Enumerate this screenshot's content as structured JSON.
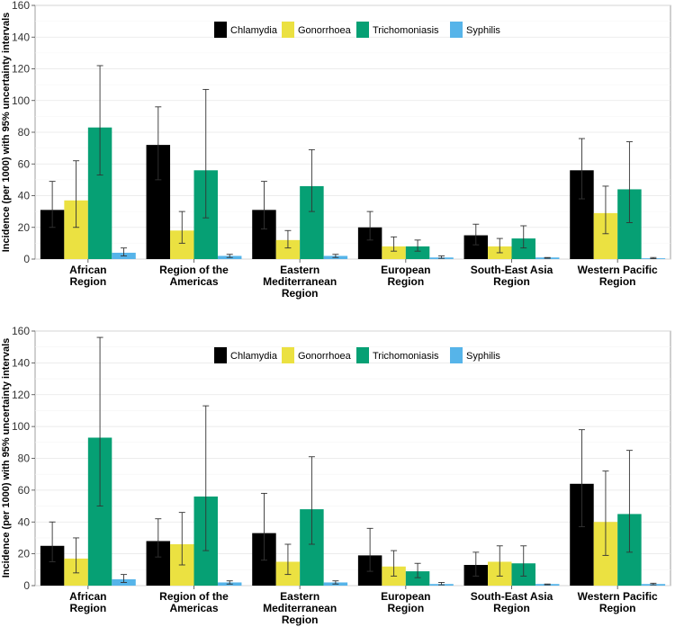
{
  "colors": {
    "Chlamydia": "#000000",
    "Gonorrhoea": "#ebe141",
    "Trichomoniasis": "#06a074",
    "Syphilis": "#56b4e9"
  },
  "chart_data": [
    {
      "type": "bar",
      "title": "",
      "xlabel": "",
      "ylabel": "Incidence (per 1000) with 95% uncertainty intervals",
      "ylim": [
        0,
        160
      ],
      "yticks": [
        0,
        20,
        40,
        60,
        80,
        100,
        120,
        140,
        160
      ],
      "grid": true,
      "legend_position": "top-center",
      "categories": [
        [
          "African",
          "Region"
        ],
        [
          "Region of the",
          "Americas"
        ],
        [
          "Eastern",
          "Mediterranean",
          "Region"
        ],
        [
          "European",
          "Region"
        ],
        [
          "South-East Asia",
          "Region"
        ],
        [
          "Western Pacific",
          "Region"
        ]
      ],
      "series": [
        {
          "name": "Chlamydia",
          "values": [
            31,
            72,
            31,
            20,
            15,
            56
          ],
          "lower": [
            20,
            50,
            19,
            12,
            9,
            38
          ],
          "upper": [
            49,
            96,
            49,
            30,
            22,
            76
          ]
        },
        {
          "name": "Gonorrhoea",
          "values": [
            37,
            18,
            12,
            8,
            8,
            29
          ],
          "lower": [
            20,
            10,
            7,
            5,
            4,
            16
          ],
          "upper": [
            62,
            30,
            18,
            14,
            13,
            46
          ]
        },
        {
          "name": "Trichomoniasis",
          "values": [
            83,
            56,
            46,
            8,
            13,
            44
          ],
          "lower": [
            53,
            26,
            30,
            5,
            7,
            23
          ],
          "upper": [
            122,
            107,
            69,
            12,
            21,
            74
          ]
        },
        {
          "name": "Syphilis",
          "values": [
            4,
            2,
            2,
            1,
            1,
            0.5
          ],
          "lower": [
            2,
            1,
            1,
            0.5,
            0.5,
            0.3
          ],
          "upper": [
            7,
            3,
            3,
            2,
            1,
            1
          ]
        }
      ]
    },
    {
      "type": "bar",
      "title": "",
      "xlabel": "",
      "ylabel": "Incidence (per 1000) with 95% uncertainty intervals",
      "ylim": [
        0,
        160
      ],
      "yticks": [
        0,
        20,
        40,
        60,
        80,
        100,
        120,
        140,
        160
      ],
      "grid": true,
      "legend_position": "top-center",
      "categories": [
        [
          "African",
          "Region"
        ],
        [
          "Region of the",
          "Americas"
        ],
        [
          "Eastern",
          "Mediterranean",
          "Region"
        ],
        [
          "European",
          "Region"
        ],
        [
          "South-East Asia",
          "Region"
        ],
        [
          "Western Pacific",
          "Region"
        ]
      ],
      "series": [
        {
          "name": "Chlamydia",
          "values": [
            25,
            28,
            33,
            19,
            13,
            64
          ],
          "lower": [
            15,
            18,
            16,
            9,
            6,
            37
          ],
          "upper": [
            40,
            42,
            58,
            36,
            21,
            98
          ]
        },
        {
          "name": "Gonorrhoea",
          "values": [
            17,
            26,
            15,
            12,
            15,
            40
          ],
          "lower": [
            8,
            13,
            7,
            6,
            6,
            19
          ],
          "upper": [
            30,
            46,
            26,
            22,
            25,
            72
          ]
        },
        {
          "name": "Trichomoniasis",
          "values": [
            93,
            56,
            48,
            9,
            14,
            45
          ],
          "lower": [
            50,
            22,
            26,
            5,
            6,
            21
          ],
          "upper": [
            156,
            113,
            81,
            14,
            25,
            85
          ]
        },
        {
          "name": "Syphilis",
          "values": [
            4,
            2,
            2,
            1,
            1,
            1
          ],
          "lower": [
            2,
            1,
            1,
            0.5,
            0.5,
            0.5
          ],
          "upper": [
            7,
            3,
            3,
            2,
            1,
            1.5
          ]
        }
      ]
    }
  ]
}
